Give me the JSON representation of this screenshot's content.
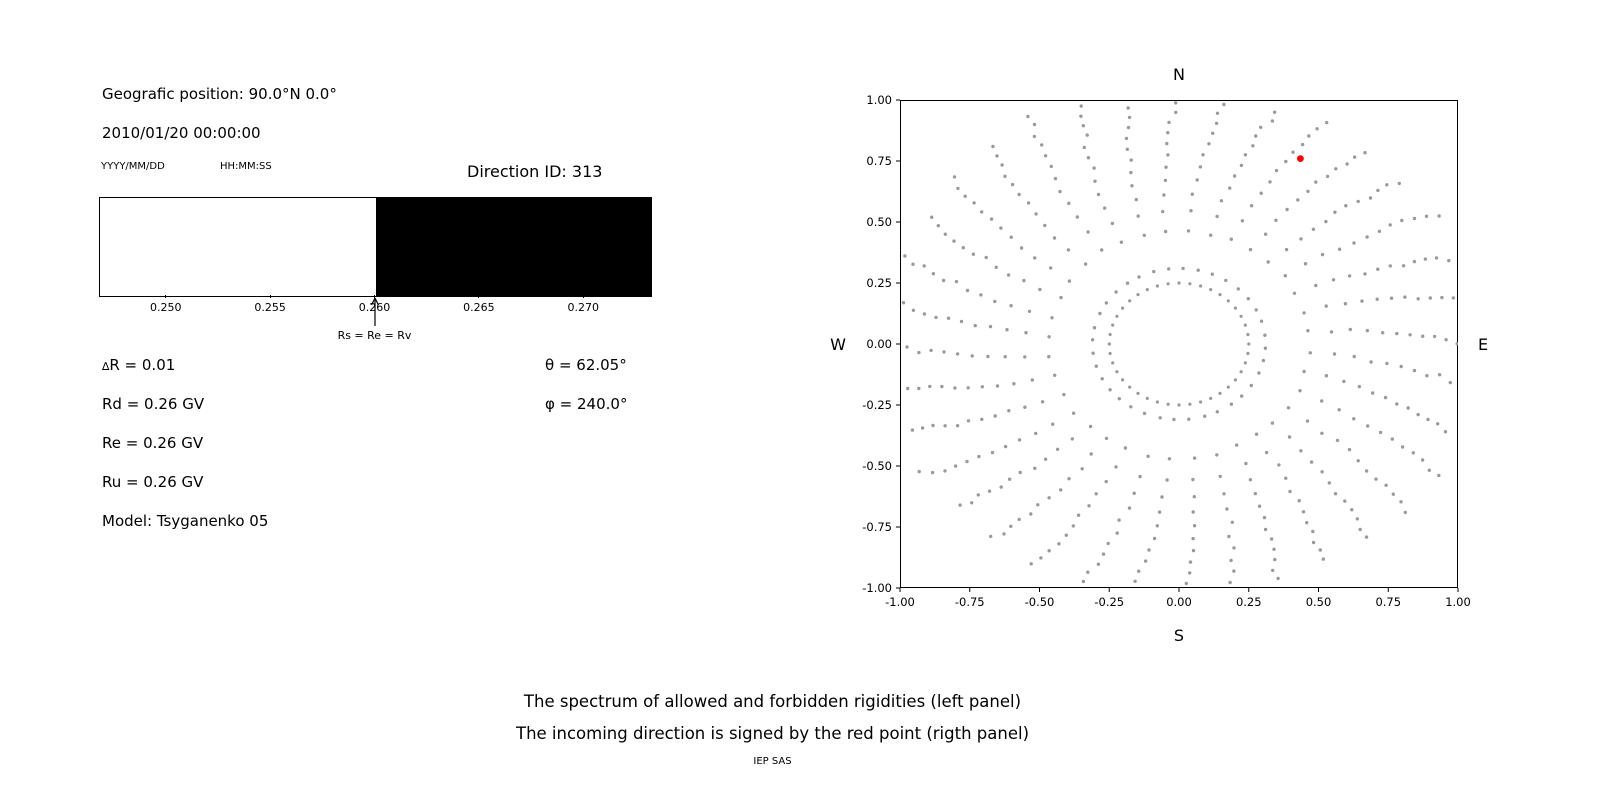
{
  "info": {
    "position_line": "Geografic position: 90.0°N 0.0°",
    "datetime_line": "2010/01/20 00:00:00",
    "date_format_label": "YYYY/MM/DD",
    "time_format_label": "HH:MM:SS",
    "direction_id_label": "Direction ID: 313"
  },
  "values": {
    "delta_symbol": "∆",
    "delta_r_rest": "R = 0.01",
    "rd": "Rd = 0.26 GV",
    "re": "Re = 0.26 GV",
    "ru": "Ru = 0.26 GV",
    "model": "Model: Tsyganenko 05",
    "theta": "θ = 62.05°",
    "phi": "φ = 240.0°"
  },
  "caption": {
    "line1": "The spectrum of allowed and forbidden rigidities (left panel)",
    "line2": "The incoming direction is signed by the red point (rigth panel)",
    "credit": "IEP SAS"
  },
  "chart_data": [
    {
      "type": "bar",
      "xlim": [
        0.2468,
        0.2732
      ],
      "xtick_values": [
        0.25,
        0.255,
        0.26,
        0.265,
        0.27
      ],
      "tick_decimals": 3,
      "segments": [
        {
          "name": "allowed",
          "from": 0.2468,
          "to": 0.26,
          "color": "#ffffff"
        },
        {
          "name": "forbidden",
          "from": 0.26,
          "to": 0.2732,
          "color": "#000000"
        }
      ],
      "annotation": {
        "text": "Rs = Re = Rv",
        "x": 0.26
      }
    },
    {
      "type": "scatter",
      "compass": {
        "north": "N",
        "east": "E",
        "south": "S",
        "west": "W"
      },
      "xlim": [
        -1.0,
        1.0
      ],
      "ylim": [
        -1.0,
        1.0
      ],
      "xticks": [
        -1.0,
        -0.75,
        -0.5,
        -0.25,
        0.0,
        0.25,
        0.5,
        0.75,
        1.0
      ],
      "yticks": [
        -1.0,
        -0.75,
        -0.5,
        -0.25,
        0.0,
        0.25,
        0.5,
        0.75,
        1.0
      ],
      "tick_decimals": 2,
      "dot_color": "#9a9a9a",
      "red_point": {
        "x": 0.435,
        "y": 0.76,
        "color": "#ff0000",
        "theta_deg": 62.05,
        "phi_deg": 240.0
      },
      "pattern": {
        "inner_ring": {
          "radius": 0.25,
          "n_dots": 40
        },
        "n_spokes": 36,
        "spoke_r_start": 0.31,
        "spoke_r_end": 1.04,
        "dots_per_spoke": 13,
        "density_power": 0.62,
        "twist_rad": 0.12
      }
    }
  ]
}
